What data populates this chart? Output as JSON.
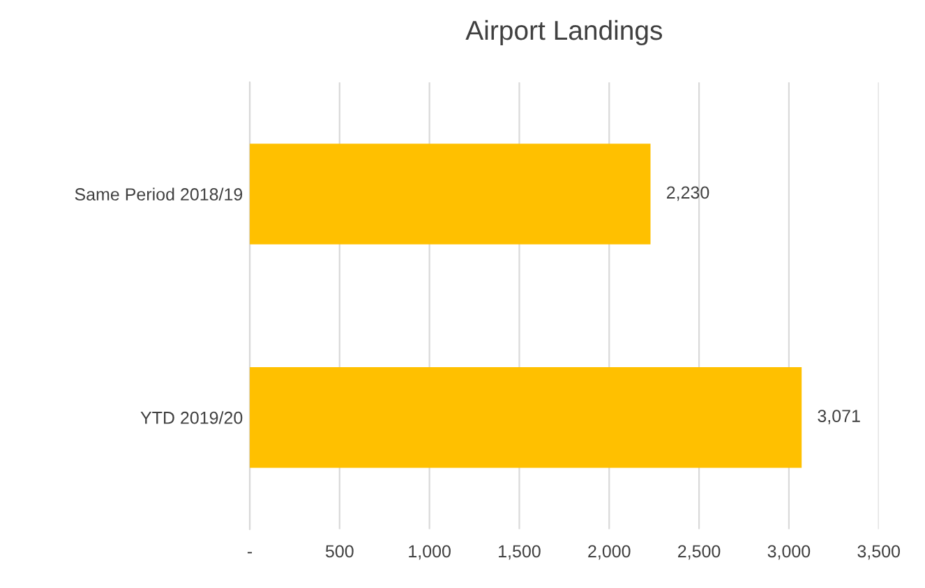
{
  "chart_data": {
    "type": "bar",
    "orientation": "horizontal",
    "title": "Airport Landings",
    "categories": [
      "Same Period 2018/19",
      "YTD 2019/20"
    ],
    "values": [
      2230,
      3071
    ],
    "color": "#ffc000",
    "value_labels": [
      "2,230",
      "3,071"
    ],
    "xlim": [
      0,
      3500
    ],
    "xticks": [
      {
        "value": 0,
        "label": "-"
      },
      500,
      {
        "value": 1000,
        "label": "1,000"
      },
      {
        "value": 1500,
        "label": "1,500"
      },
      {
        "value": 2000,
        "label": "2,000"
      },
      {
        "value": 2500,
        "label": "2,500"
      },
      {
        "value": 3000,
        "label": "3,000"
      },
      {
        "value": 3500,
        "label": "3,500"
      }
    ],
    "grid": "x",
    "legend": false
  }
}
